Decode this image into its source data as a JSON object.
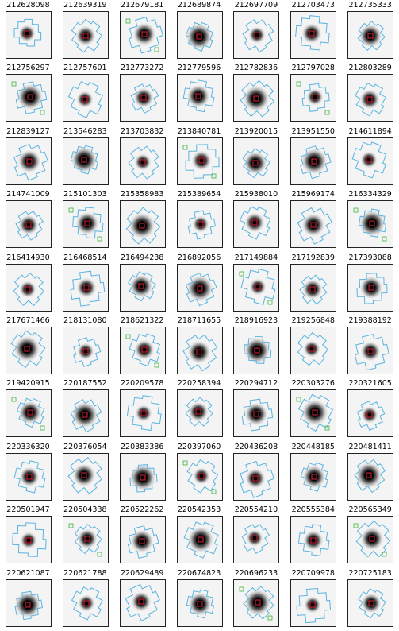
{
  "panels": [
    "212628098",
    "212639319",
    "212679181",
    "212689874",
    "212697709",
    "212703473",
    "212735333",
    "212756297",
    "212757601",
    "212773272",
    "212779596",
    "212782836",
    "212797028",
    "212803289",
    "212839127",
    "213546283",
    "213703832",
    "213840781",
    "213920015",
    "213951550",
    "214611894",
    "214741009",
    "215101303",
    "215358983",
    "215389654",
    "215938010",
    "215969174",
    "216334329",
    "216414930",
    "216468514",
    "216494238",
    "216892056",
    "217149884",
    "217192839",
    "217393088",
    "217671466",
    "218131080",
    "218621322",
    "218711655",
    "218916923",
    "219256848",
    "219388192",
    "219420915",
    "220187552",
    "220209578",
    "220258394",
    "220294712",
    "220303276",
    "220321605",
    "220336320",
    "220376054",
    "220383386",
    "220397060",
    "220436208",
    "220448185",
    "220481411",
    "220501947",
    "220504338",
    "220522262",
    "220542353",
    "220554210",
    "220555384",
    "220565349",
    "220621087",
    "220621788",
    "220629489",
    "220674823",
    "220696233",
    "220709978",
    "220725183"
  ]
}
